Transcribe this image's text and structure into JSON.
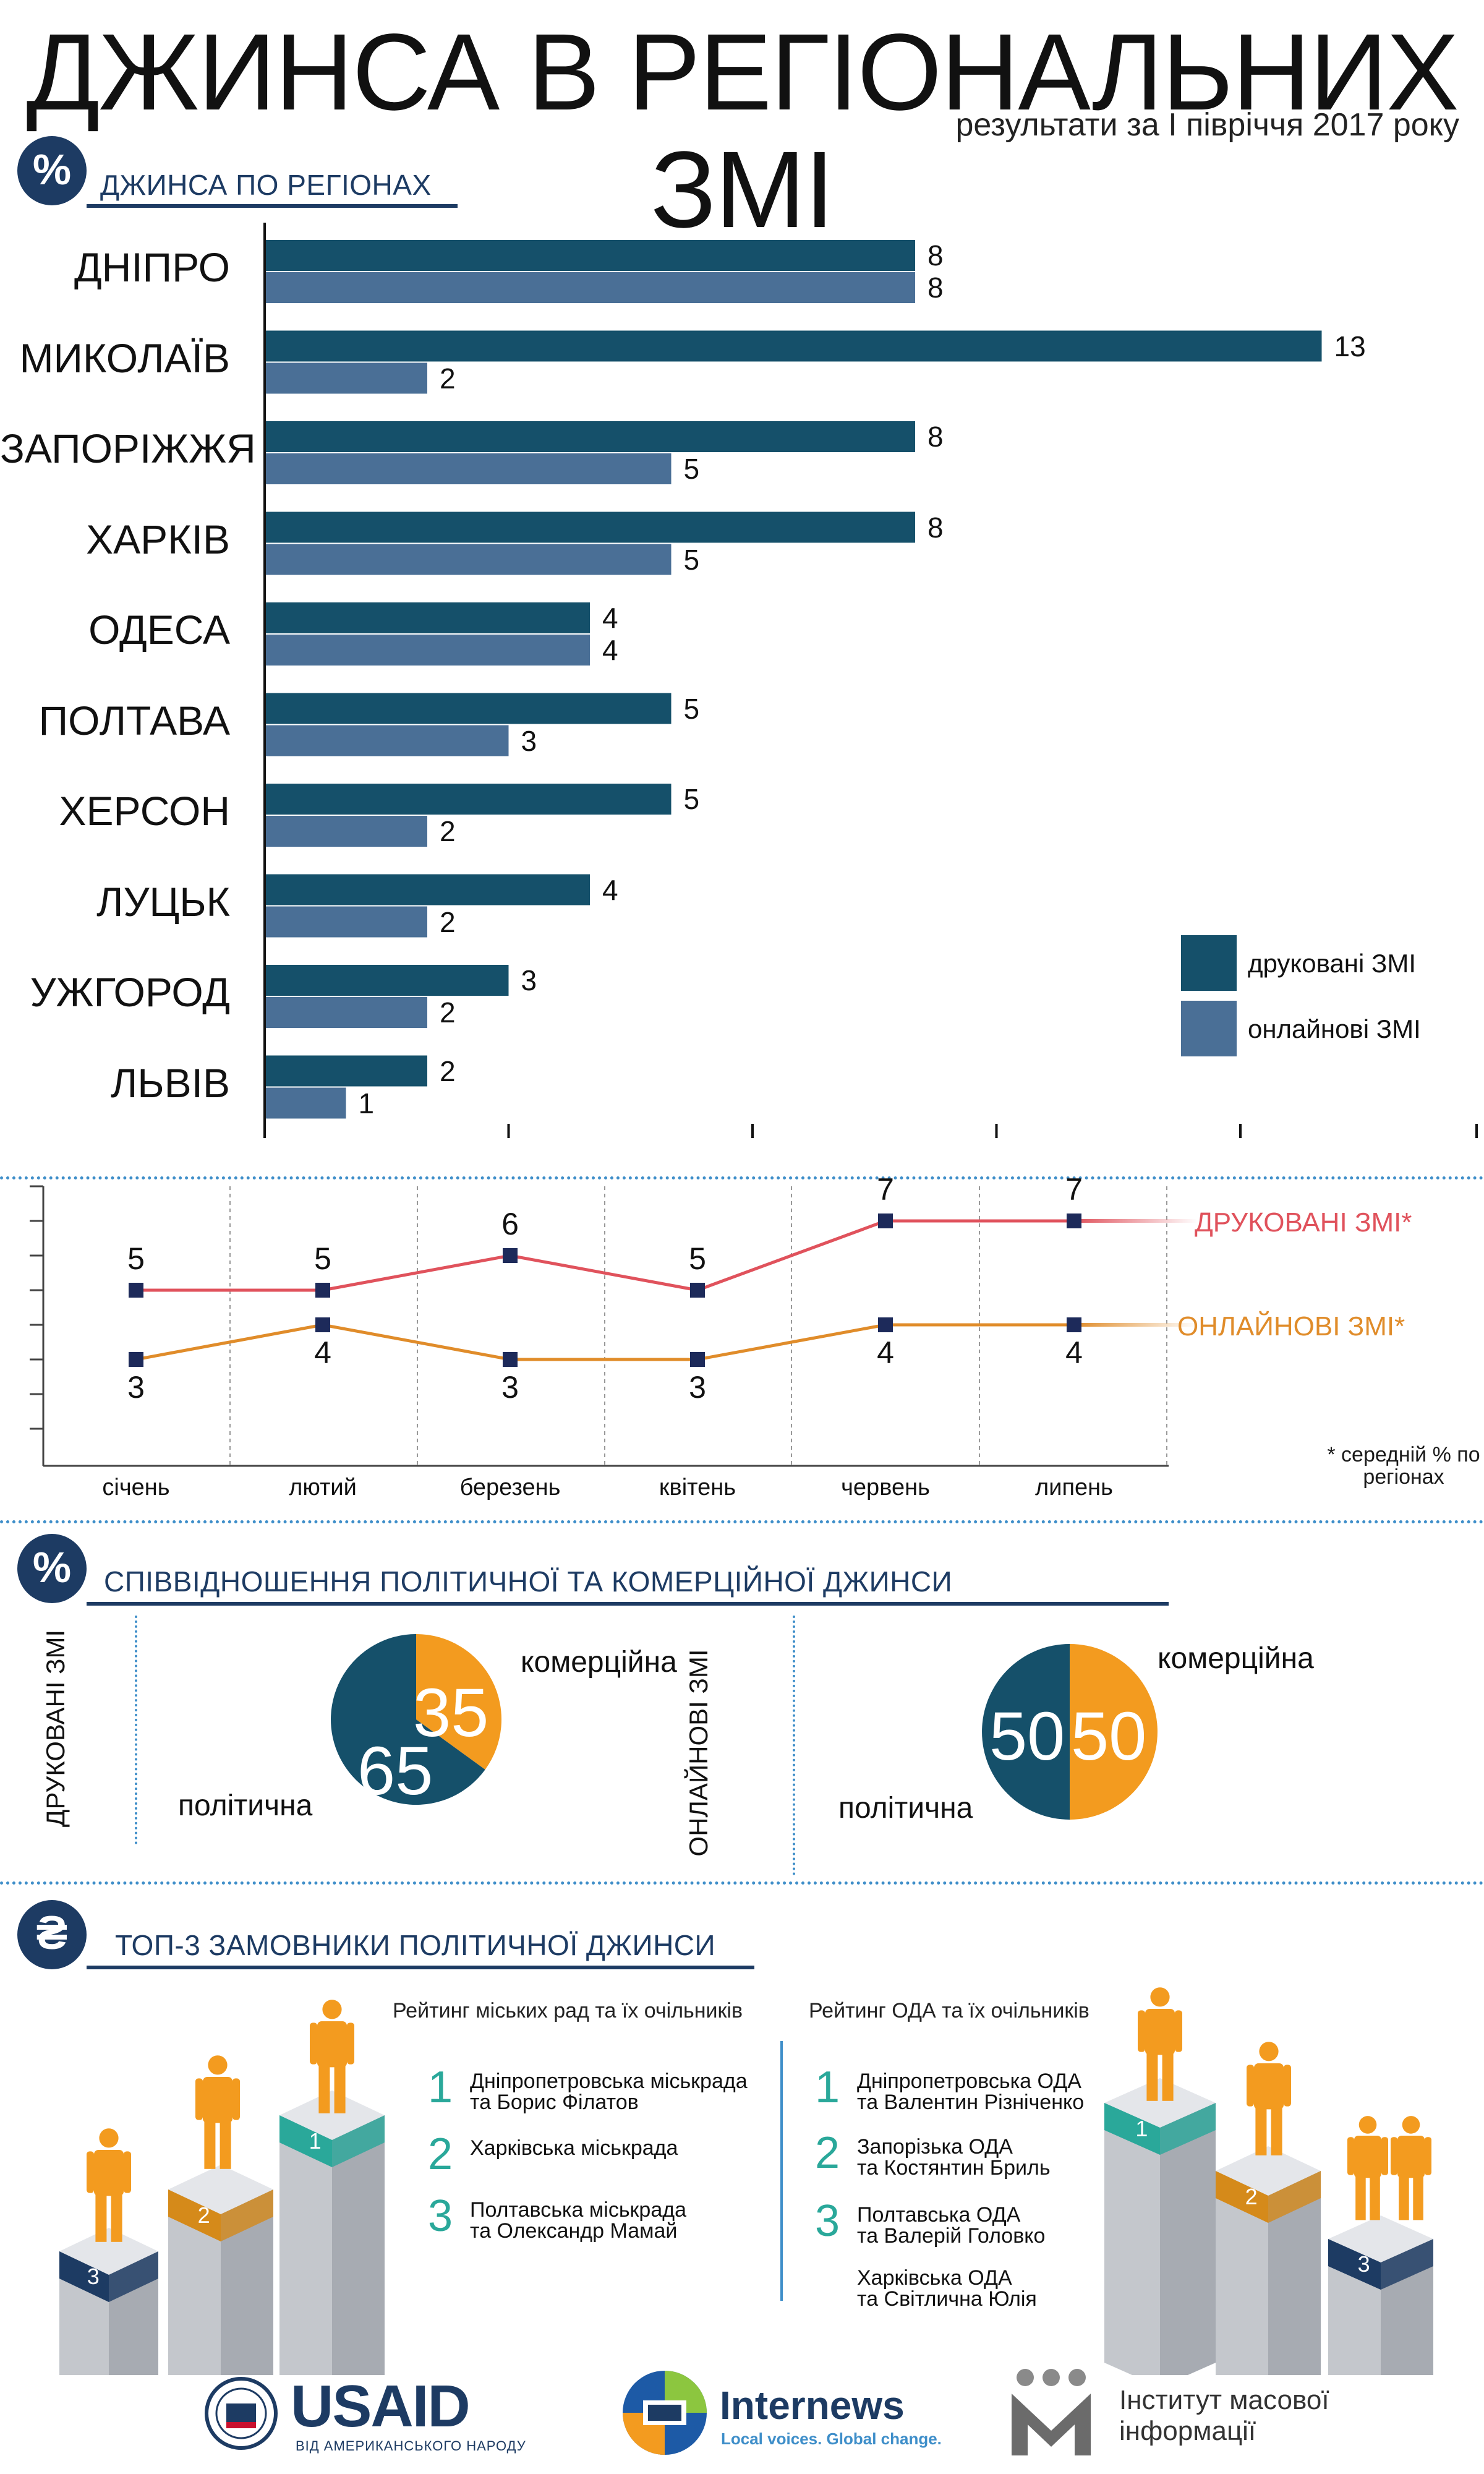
{
  "header": {
    "title": "ДЖИНСА В РЕГІОНАЛЬНИХ ЗМІ",
    "subtitle": "результати за І півріччя 2017 року"
  },
  "section1": {
    "icon": "%",
    "icon_name": "percent-icon",
    "title": "ДЖИНСА ПО РЕГІОНАХ"
  },
  "colors": {
    "print": "#15506a",
    "online": "#4a6f96",
    "print_line": "#e0525c",
    "online_line": "#e08c2a",
    "navy": "#1d3b63",
    "orange": "#f39b1f",
    "teal": "#2aa89a"
  },
  "chart_data": [
    {
      "type": "bar",
      "orientation": "horizontal",
      "categories": [
        "ДНІПРО",
        "МИКОЛАЇВ",
        "ЗАПОРІЖЖЯ",
        "ХАРКІВ",
        "ОДЕСА",
        "ПОЛТАВА",
        "ХЕРСОН",
        "ЛУЦЬК",
        "УЖГОРОД",
        "ЛЬВІВ"
      ],
      "series": [
        {
          "name": "друковані ЗМІ",
          "values": [
            8,
            13,
            8,
            8,
            4,
            5,
            5,
            4,
            3,
            2
          ]
        },
        {
          "name": "онлайнові ЗМІ",
          "values": [
            8,
            2,
            5,
            5,
            4,
            3,
            2,
            2,
            2,
            1
          ]
        }
      ],
      "xlim": [
        0,
        15
      ],
      "legend": "bottom-right"
    },
    {
      "type": "line",
      "categories": [
        "січень",
        "лютий",
        "березень",
        "квітень",
        "червень",
        "липень"
      ],
      "series": [
        {
          "name": "ДРУКОВАНІ ЗМІ*",
          "values": [
            5,
            5,
            6,
            5,
            7,
            7
          ]
        },
        {
          "name": "ОНЛАЙНОВІ ЗМІ*",
          "values": [
            3,
            4,
            3,
            3,
            4,
            4
          ]
        }
      ],
      "ylim": [
        1,
        8
      ],
      "note": "* середній % по регіонах"
    },
    {
      "type": "pie",
      "title": "ДРУКОВАНІ ЗМІ",
      "slices": [
        {
          "label": "політична",
          "value": 65
        },
        {
          "label": "комерційна",
          "value": 35
        }
      ]
    },
    {
      "type": "pie",
      "title": "ОНЛАЙНОВІ ЗМІ",
      "slices": [
        {
          "label": "політична",
          "value": 50
        },
        {
          "label": "комерційна",
          "value": 50
        }
      ]
    }
  ],
  "section2": {
    "icon": "%",
    "title": "СПІВВІДНОШЕННЯ ПОЛІТИЧНОЇ ТА КОМЕРЦІЙНОЇ ДЖИНСИ"
  },
  "pies": {
    "print_label": "ДРУКОВАНІ ЗМІ",
    "online_label": "ОНЛАЙНОВІ ЗМІ",
    "commercial": "комерційна",
    "political": "політична"
  },
  "section3": {
    "icon": "₴",
    "icon_name": "hryvnia-icon",
    "title": "ТОП-3 ЗАМОВНИКИ ПОЛІТИЧНОЇ ДЖИНСИ"
  },
  "ranking_city": {
    "heading": "Рейтинг міських рад та їх очільників",
    "items": [
      {
        "num": "1",
        "lines": [
          "Дніпропетровська міськрада",
          "та Борис Філатов"
        ]
      },
      {
        "num": "2",
        "lines": [
          "Харківська міськрада"
        ]
      },
      {
        "num": "3",
        "lines": [
          "Полтавська міськрада",
          "та Олександр Мамай"
        ]
      }
    ]
  },
  "ranking_oda": {
    "heading": "Рейтинг ОДА та їх очільників",
    "items": [
      {
        "num": "1",
        "lines": [
          "Дніпропетровська ОДА",
          "та Валентин Різніченко"
        ]
      },
      {
        "num": "2",
        "lines": [
          "Запорізька ОДА",
          "та Костянтин Бриль"
        ]
      },
      {
        "num": "3",
        "lines": [
          "Полтавська ОДА",
          "та Валерій Головко",
          "",
          "Харківська ОДА",
          "та Світлична Юлія"
        ]
      }
    ]
  },
  "podium": {
    "first": "1",
    "second": "2",
    "third": "3"
  },
  "logos": {
    "usaid": "USAID",
    "usaid_sub": "ВІД АМЕРИКАНСЬКОГО НАРОДУ",
    "internews": "Internews",
    "internews_sub": "Local voices. Global change.",
    "imi_line1": "Інститут масової",
    "imi_line2": "інформації"
  }
}
